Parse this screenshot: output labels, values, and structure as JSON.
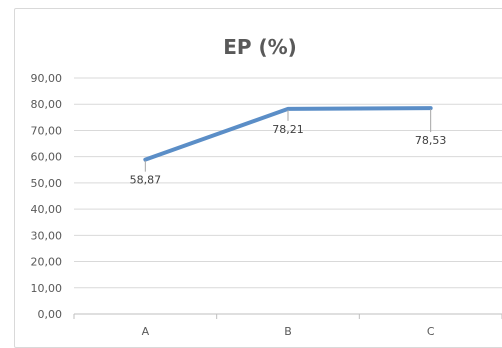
{
  "chart_data": {
    "type": "line",
    "title": "EP (%)",
    "categories": [
      "A",
      "B",
      "C"
    ],
    "series": [
      {
        "values": [
          58.87,
          78.21,
          78.53
        ],
        "data_labels": [
          "58,87",
          "78,21",
          "78,53"
        ]
      }
    ],
    "y_ticks": [
      "0,00",
      "10,00",
      "20,00",
      "30,00",
      "40,00",
      "50,00",
      "60,00",
      "70,00",
      "80,00",
      "90,00"
    ],
    "ylim": [
      0,
      90
    ],
    "grid": true,
    "legend": "none",
    "line_color": "#5b8ec7"
  }
}
